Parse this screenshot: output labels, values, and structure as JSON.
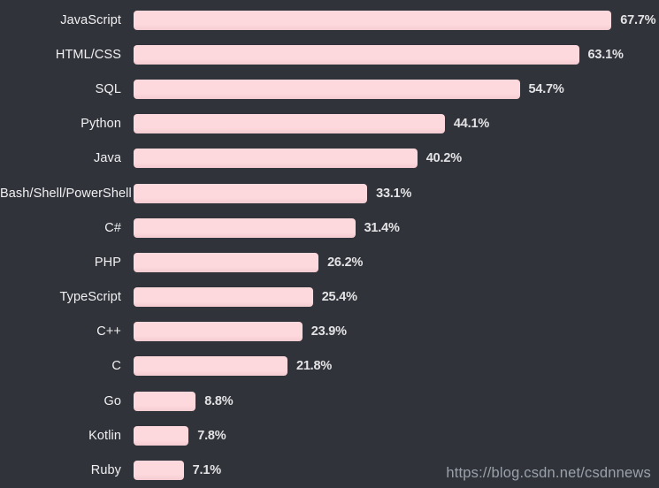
{
  "chart_data": {
    "type": "bar",
    "orientation": "horizontal",
    "title": "",
    "xlabel": "",
    "ylabel": "",
    "categories": [
      "JavaScript",
      "HTML/CSS",
      "SQL",
      "Python",
      "Java",
      "Bash/Shell/PowerShell",
      "C#",
      "PHP",
      "TypeScript",
      "C++",
      "C",
      "Go",
      "Kotlin",
      "Ruby"
    ],
    "values": [
      67.7,
      63.1,
      54.7,
      44.1,
      40.2,
      33.1,
      31.4,
      26.2,
      25.4,
      23.9,
      21.8,
      8.8,
      7.8,
      7.1
    ],
    "value_suffix": "%",
    "value_labels": [
      "67.7%",
      "63.1%",
      "54.7%",
      "44.1%",
      "40.2%",
      "33.1%",
      "31.4%",
      "26.2%",
      "25.4%",
      "23.9%",
      "21.8%",
      "8.8%",
      "7.8%",
      "7.1%"
    ],
    "xlim": [
      0,
      74.5
    ],
    "grid": false,
    "legend": false
  },
  "colors": {
    "background": "#30333a",
    "bar": "#fdd8dc",
    "bar_edge": "#f4ccd2",
    "label": "#f1f1f3",
    "value": "#e3e3e5",
    "watermark": "#9aa1aa"
  },
  "watermark": {
    "text": "https://blog.csdn.net/csdnnews"
  }
}
